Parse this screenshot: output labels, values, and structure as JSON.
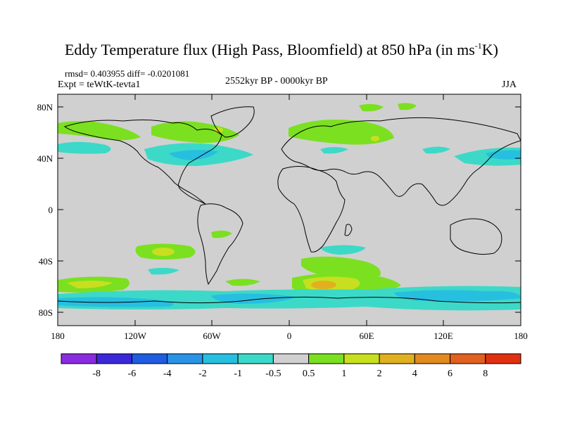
{
  "title": {
    "main": "Eddy Temperature flux (High Pass, Bloomfield) at 850 hPa (in ms",
    "sup": "-1",
    "end": "K)"
  },
  "stats": "rmsd= 0.403955 diff= -0.0201081",
  "expt": "Expt = teWtK-tevta1",
  "period": "2552kyr BP - 0000kyr BP",
  "season": "JJA",
  "lat_labels": [
    "80N",
    "40N",
    "0",
    "40S",
    "80S"
  ],
  "lon_labels": [
    "180",
    "120W",
    "60W",
    "0",
    "60E",
    "120E",
    "180"
  ],
  "colorbar": {
    "labels": [
      "-8",
      "-6",
      "-4",
      "-2",
      "-1",
      "-0.5",
      "0.5",
      "1",
      "2",
      "4",
      "6",
      "8"
    ],
    "colors": [
      "#8a2be2",
      "#3a28d9",
      "#1f5ce0",
      "#2a93e6",
      "#27bfe0",
      "#3cd9c8",
      "#d0d0d0",
      "#7be020",
      "#c8df20",
      "#e0b020",
      "#e08a20",
      "#e06020",
      "#e03010"
    ]
  },
  "colors": {
    "land_bg": "#d0d0d0",
    "coast": "#000000"
  }
}
